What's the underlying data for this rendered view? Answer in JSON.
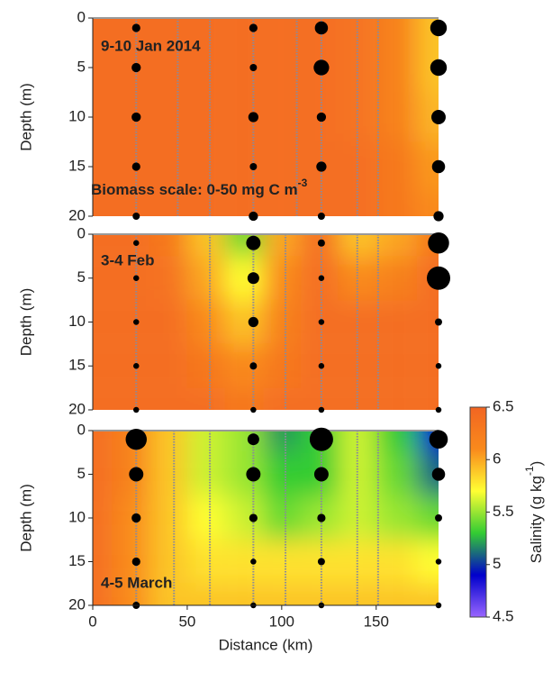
{
  "chart_data": [
    {
      "type": "heatmap",
      "title": "9-10 Jan 2014",
      "ylabel": "Depth (m)",
      "annotation": {
        "text": "Biomass scale: 0-50 mg C m",
        "sup": "-3"
      },
      "xlim": [
        0,
        183
      ],
      "ylim": [
        0,
        20
      ],
      "yticks": [
        0,
        5,
        10,
        15,
        20
      ],
      "x": [
        0,
        20,
        40,
        60,
        80,
        100,
        120,
        140,
        160,
        183
      ],
      "y": [
        0,
        5,
        10,
        15,
        20
      ],
      "z": [
        [
          6.4,
          6.4,
          6.4,
          6.4,
          6.4,
          6.4,
          6.4,
          6.35,
          6.2,
          5.9
        ],
        [
          6.4,
          6.4,
          6.4,
          6.4,
          6.4,
          6.4,
          6.4,
          6.35,
          6.2,
          5.9
        ],
        [
          6.4,
          6.4,
          6.4,
          6.4,
          6.4,
          6.4,
          6.4,
          6.35,
          6.2,
          5.95
        ],
        [
          6.4,
          6.4,
          6.4,
          6.4,
          6.4,
          6.4,
          6.4,
          6.4,
          6.3,
          6.05
        ],
        [
          6.4,
          6.4,
          6.4,
          6.4,
          6.4,
          6.4,
          6.4,
          6.4,
          6.3,
          6.1
        ]
      ],
      "ctd_x": [
        23,
        45,
        62,
        85,
        108,
        121,
        140,
        151
      ],
      "stations": [
        23,
        85,
        121,
        183
      ],
      "bubble_depths": [
        1,
        5,
        10,
        15,
        20
      ],
      "biomass": [
        [
          4,
          5,
          5,
          4,
          3
        ],
        [
          4,
          3,
          6,
          3,
          5
        ],
        [
          10,
          14,
          5,
          6,
          3
        ],
        [
          16,
          16,
          12,
          10,
          6
        ]
      ]
    },
    {
      "type": "heatmap",
      "title": "3-4 Feb",
      "ylabel": "Depth (m)",
      "xlim": [
        0,
        183
      ],
      "ylim": [
        0,
        20
      ],
      "yticks": [
        0,
        5,
        10,
        15,
        20
      ],
      "x": [
        0,
        20,
        40,
        60,
        80,
        100,
        120,
        140,
        160,
        183
      ],
      "y": [
        0,
        5,
        10,
        15,
        20
      ],
      "z": [
        [
          6.4,
          6.4,
          6.3,
          5.9,
          5.4,
          6.0,
          6.4,
          5.9,
          6.0,
          6.3
        ],
        [
          6.4,
          6.4,
          6.35,
          6.0,
          5.7,
          6.1,
          6.4,
          6.1,
          6.2,
          6.4
        ],
        [
          6.4,
          6.4,
          6.4,
          6.1,
          5.9,
          6.2,
          6.4,
          6.4,
          6.4,
          6.4
        ],
        [
          6.4,
          6.4,
          6.4,
          6.3,
          6.1,
          6.3,
          6.4,
          6.4,
          6.4,
          6.4
        ],
        [
          6.4,
          6.4,
          6.4,
          6.4,
          6.3,
          6.4,
          6.4,
          6.4,
          6.4,
          6.4
        ]
      ],
      "ctd_x": [
        23,
        62,
        85,
        102,
        121,
        140,
        151
      ],
      "stations": [
        23,
        85,
        121,
        183
      ],
      "bubble_depths": [
        1,
        5,
        10,
        15,
        20
      ],
      "biomass": [
        [
          2,
          2,
          2,
          2,
          2
        ],
        [
          12,
          8,
          6,
          3,
          2
        ],
        [
          3,
          2,
          2,
          2,
          2
        ],
        [
          26,
          32,
          3,
          2,
          2
        ]
      ]
    },
    {
      "type": "heatmap",
      "title": "4-5 March",
      "ylabel": "Depth (m)",
      "xlabel": "Distance (km)",
      "xlim": [
        0,
        183
      ],
      "ylim": [
        0,
        20
      ],
      "yticks": [
        0,
        5,
        10,
        15,
        20
      ],
      "xticks": [
        0,
        50,
        100,
        150
      ],
      "x": [
        0,
        20,
        40,
        60,
        80,
        100,
        120,
        140,
        160,
        183
      ],
      "y": [
        0,
        5,
        10,
        15,
        20
      ],
      "z": [
        [
          6.4,
          6.2,
          5.9,
          5.6,
          5.5,
          5.2,
          5.3,
          5.6,
          5.3,
          4.9
        ],
        [
          6.4,
          6.2,
          5.9,
          5.6,
          5.5,
          5.3,
          5.3,
          5.6,
          5.4,
          5.1
        ],
        [
          6.4,
          6.1,
          5.9,
          5.7,
          5.6,
          5.4,
          5.5,
          5.6,
          5.5,
          5.4
        ],
        [
          6.4,
          6.1,
          5.9,
          5.8,
          5.8,
          5.8,
          5.8,
          5.8,
          5.8,
          5.7
        ],
        [
          6.4,
          6.1,
          5.9,
          5.9,
          5.9,
          5.9,
          5.9,
          5.9,
          5.9,
          5.9
        ]
      ],
      "ctd_x": [
        23,
        43,
        62,
        85,
        102,
        121,
        140,
        151
      ],
      "stations": [
        23,
        85,
        121,
        183
      ],
      "bubble_depths": [
        1,
        5,
        10,
        15,
        20
      ],
      "biomass": [
        [
          26,
          12,
          5,
          4,
          3
        ],
        [
          8,
          12,
          4,
          2,
          2
        ],
        [
          32,
          12,
          4,
          3,
          2
        ],
        [
          20,
          10,
          3,
          2,
          2
        ]
      ],
      "colorbar": {
        "label": "Salinity (g kg",
        "sup": "-1",
        "label_end": ")",
        "clim": [
          4.5,
          6.5
        ],
        "ticks": [
          4.5,
          5,
          5.5,
          6,
          6.5
        ],
        "colors": [
          "#9966ff",
          "#0000cc",
          "#33cc33",
          "#ffff33",
          "#f98a1c",
          "#f26522"
        ]
      }
    }
  ]
}
